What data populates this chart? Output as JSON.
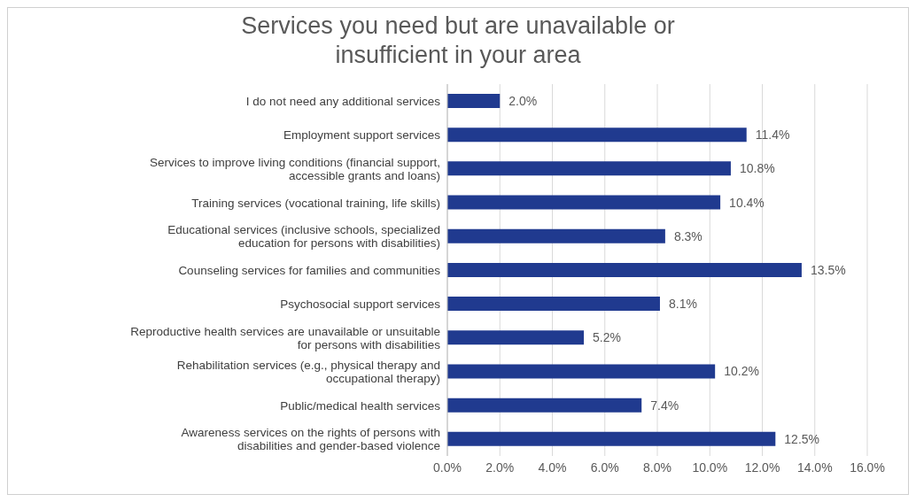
{
  "chart_data": {
    "type": "bar",
    "orientation": "horizontal",
    "title": "Services you need but are unavailable or insufficient in your area",
    "categories": [
      "I do not need any additional services",
      "Employment support services",
      "Services to improve living conditions (financial support, accessible grants and loans)",
      "Training services (vocational training, life skills)",
      "Educational services (inclusive schools, specialized education for persons with disabilities)",
      "Counseling services for families and communities",
      "Psychosocial support services",
      "Reproductive health services are unavailable or unsuitable for persons with disabilities",
      "Rehabilitation services (e.g., physical therapy and occupational therapy)",
      "Public/medical health services",
      "Awareness services on the rights of persons with disabilities and gender-based violence"
    ],
    "values": [
      2.0,
      11.4,
      10.8,
      10.4,
      8.3,
      13.5,
      8.1,
      5.2,
      10.2,
      7.4,
      12.5
    ],
    "value_labels": [
      "2.0%",
      "11.4%",
      "10.8%",
      "10.4%",
      "8.3%",
      "13.5%",
      "8.1%",
      "5.2%",
      "10.2%",
      "7.4%",
      "12.5%"
    ],
    "color": "#203a8f",
    "xlim": [
      0,
      16
    ],
    "xticks": [
      {
        "value": 0,
        "label": "0.0%"
      },
      {
        "value": 2,
        "label": "2.0%"
      },
      {
        "value": 4,
        "label": "4.0%"
      },
      {
        "value": 6,
        "label": "6.0%"
      },
      {
        "value": 8,
        "label": "8.0%"
      },
      {
        "value": 10,
        "label": "10.0%"
      },
      {
        "value": 12,
        "label": "12.0%"
      },
      {
        "value": 14,
        "label": "14.0%"
      },
      {
        "value": 16,
        "label": "16.0%"
      }
    ],
    "grid": "x"
  }
}
